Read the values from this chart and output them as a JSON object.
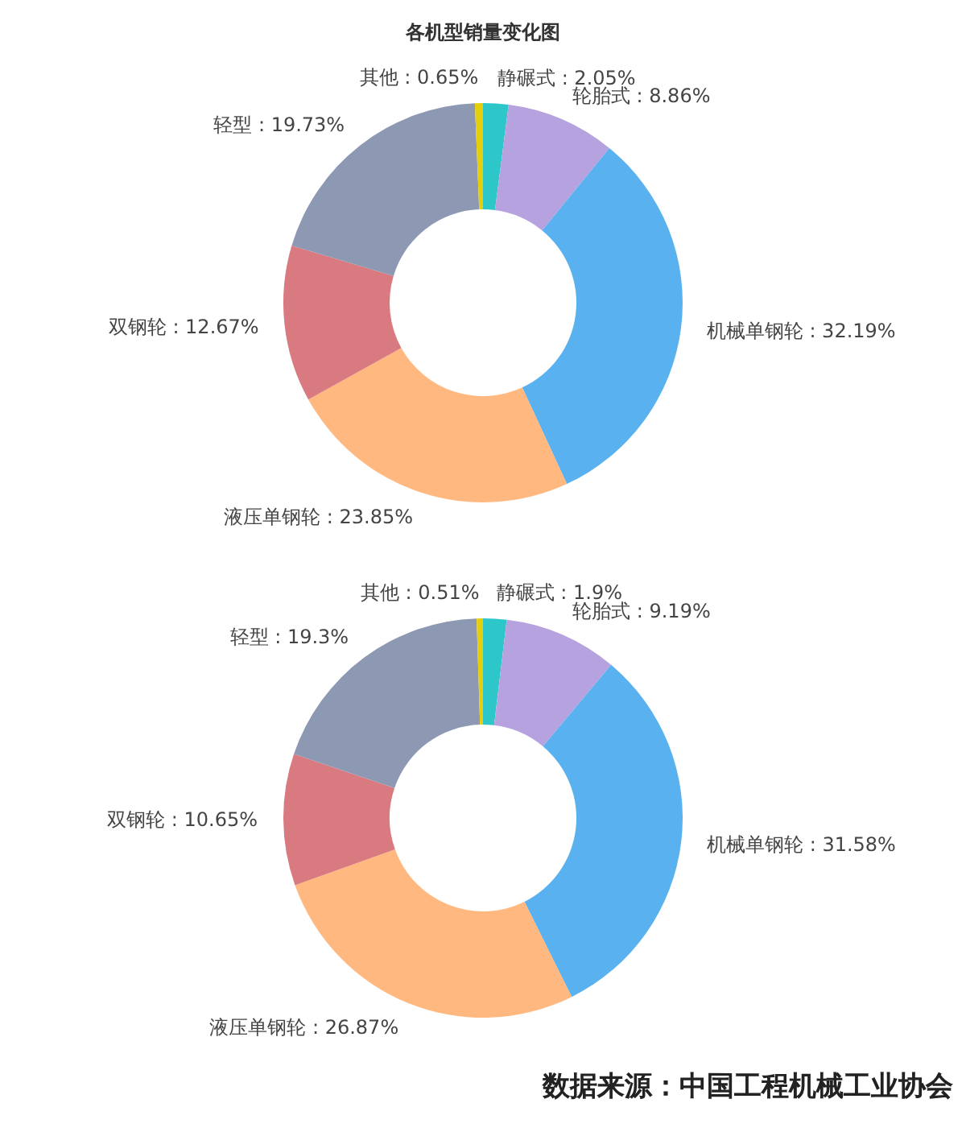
{
  "chart_data": [
    {
      "type": "donut",
      "title": "各机型销量变化图",
      "categories": [
        "静碾式",
        "轮胎式",
        "机械单钢轮",
        "液压单钢轮",
        "双钢轮",
        "轻型",
        "其他"
      ],
      "values": [
        2.05,
        8.86,
        32.19,
        23.85,
        12.67,
        19.73,
        0.65
      ],
      "value_labels": [
        "2.05%",
        "8.86%",
        "32.19%",
        "23.85%",
        "12.67%",
        "19.73%",
        "0.65%"
      ],
      "colors": [
        "#2ec7c9",
        "#b6a2de",
        "#5ab1ef",
        "#ffb980",
        "#d87a80",
        "#8d98b3",
        "#e5cf0d"
      ]
    },
    {
      "type": "donut",
      "categories": [
        "静碾式",
        "轮胎式",
        "机械单钢轮",
        "液压单钢轮",
        "双钢轮",
        "轻型",
        "其他"
      ],
      "values": [
        1.9,
        9.19,
        31.58,
        26.87,
        10.65,
        19.3,
        0.51
      ],
      "value_labels": [
        "1.9%",
        "9.19%",
        "31.58%",
        "26.87%",
        "10.65%",
        "19.3%",
        "0.51%"
      ],
      "colors": [
        "#2ec7c9",
        "#b6a2de",
        "#5ab1ef",
        "#ffb980",
        "#d87a80",
        "#8d98b3",
        "#e5cf0d"
      ],
      "annotations": [
        "数据来源：中国工程机械工业协会"
      ]
    }
  ]
}
